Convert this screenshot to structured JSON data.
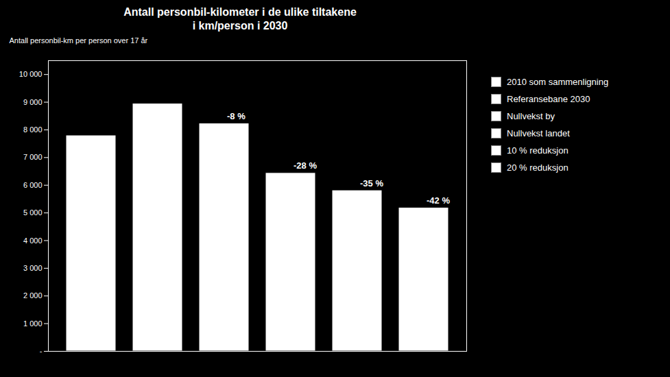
{
  "chart_data": {
    "type": "bar",
    "title": "Antall personbil-kilometer i de ulike tiltakene\n i km/person i 2030",
    "ylabel": "Antall personbil-km per person over 17 år",
    "categories": [
      "2010 som sammenligning",
      "Referansebane 2030",
      "Nullvekst by",
      "Nullvekst landet",
      "10 % reduksjon",
      "20 % reduksjon"
    ],
    "values": [
      7800,
      8950,
      8234,
      6444,
      5817,
      5191
    ],
    "colors": [
      "#ffffff",
      "#ffffff",
      "#ffffff",
      "#ffffff",
      "#ffffff",
      "#ffffff"
    ],
    "annotations": [
      {
        "category": "Nullvekst by",
        "text": "-8 %"
      },
      {
        "category": "Nullvekst landet",
        "text": "-28 %"
      },
      {
        "category": "10 % reduksjon",
        "text": "-35 %"
      },
      {
        "category": "20 % reduksjon",
        "text": "-42 %"
      }
    ],
    "ylim": [
      0,
      10500
    ],
    "yticks": [
      {
        "value": 0,
        "label": "-"
      },
      {
        "value": 1000,
        "label": "1 000"
      },
      {
        "value": 2000,
        "label": "2 000"
      },
      {
        "value": 3000,
        "label": "3 000"
      },
      {
        "value": 4000,
        "label": "4 000"
      },
      {
        "value": 5000,
        "label": "5 000"
      },
      {
        "value": 6000,
        "label": "6 000"
      },
      {
        "value": 7000,
        "label": "7 000"
      },
      {
        "value": 8000,
        "label": "8 000"
      },
      {
        "value": 9000,
        "label": "9 000"
      },
      {
        "value": 10000,
        "label": "10 000"
      }
    ],
    "tick_labels": "y",
    "grid": false,
    "legend": "right"
  }
}
